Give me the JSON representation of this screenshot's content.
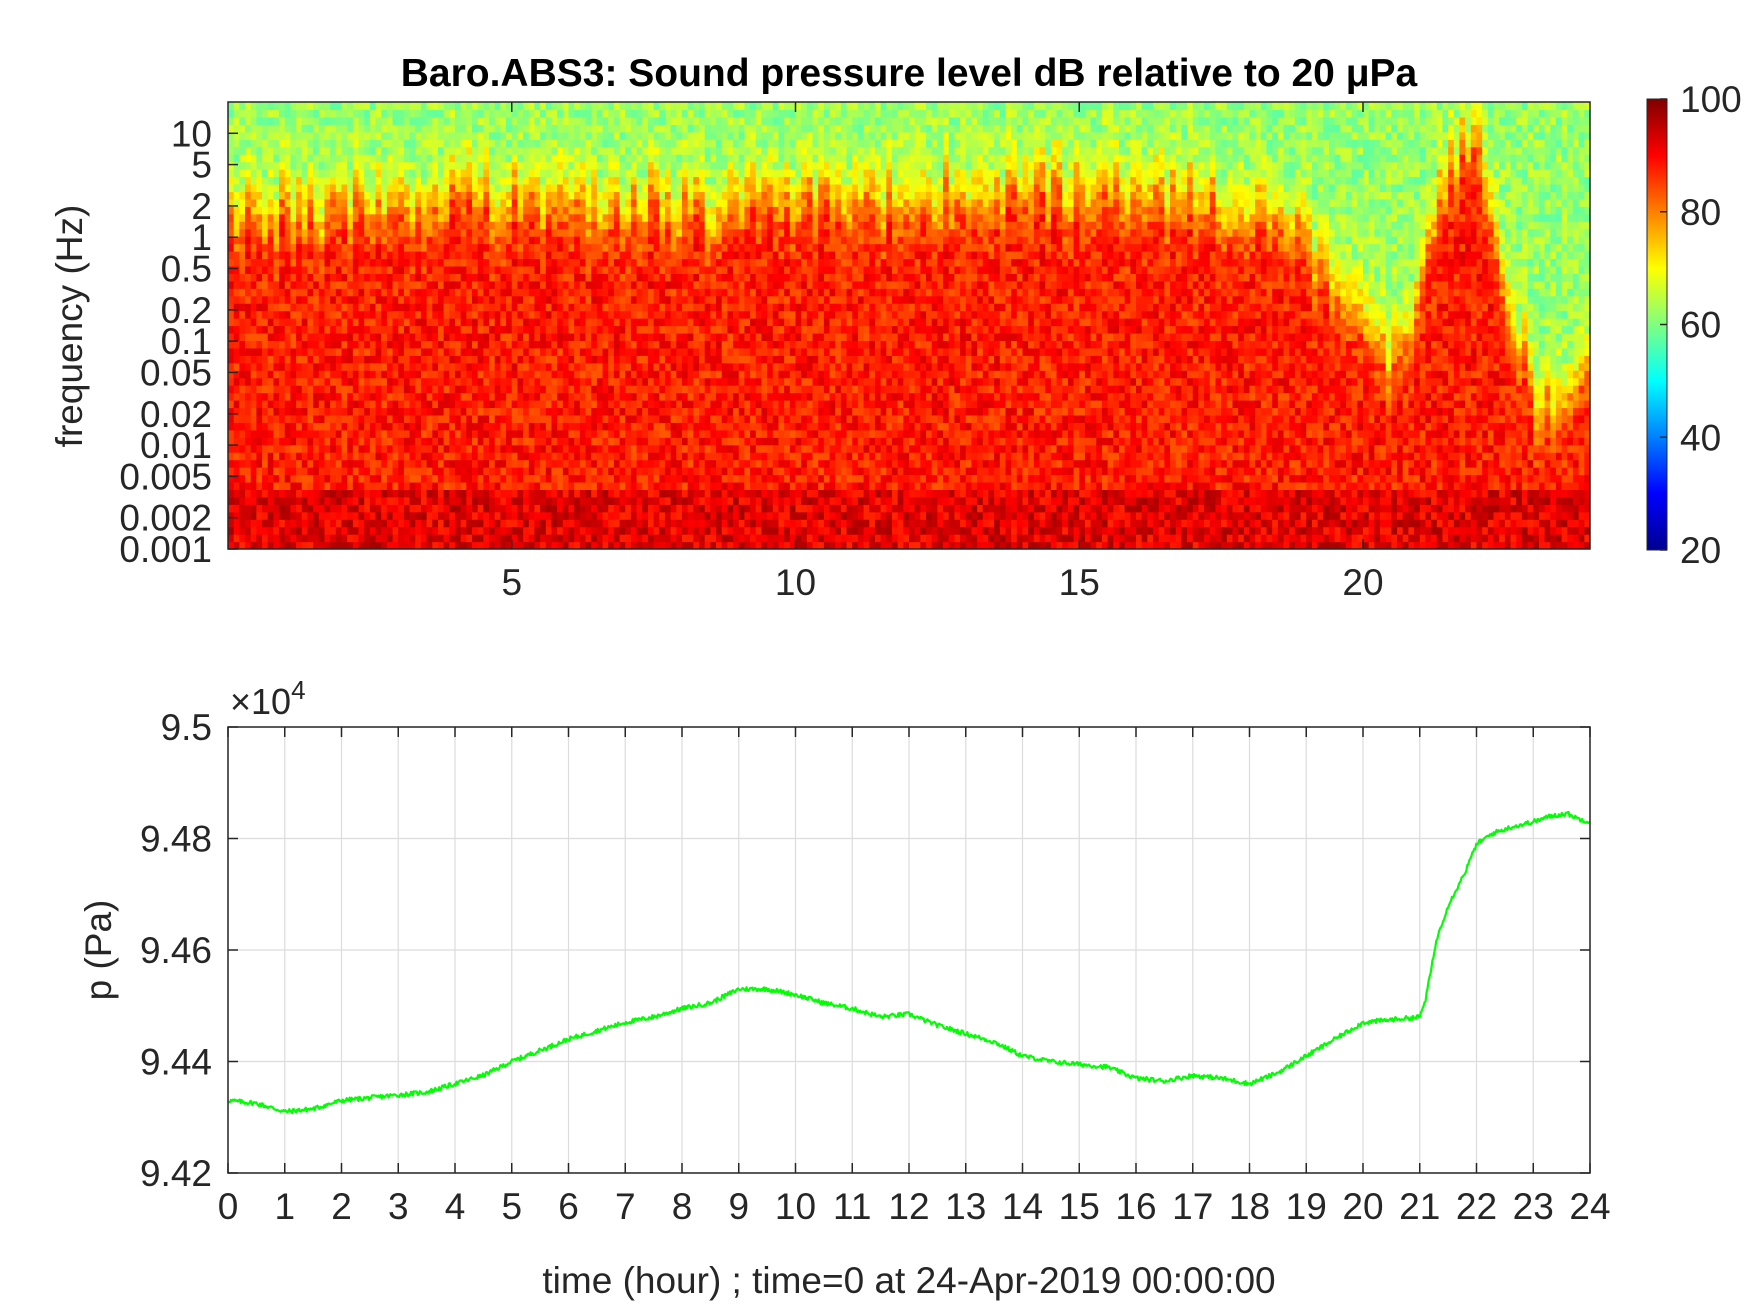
{
  "chart_data": [
    {
      "type": "heatmap",
      "title": "Baro.ABS3: Sound pressure level dB relative to 20 μPa",
      "xlabel": "",
      "ylabel": "frequency (Hz)",
      "x_ticks": [
        "5",
        "10",
        "15",
        "20"
      ],
      "x_tick_values": [
        5,
        10,
        15,
        20
      ],
      "xlim": [
        0,
        24
      ],
      "y_scale": "log",
      "ylim": [
        0.001,
        20
      ],
      "y_ticks": [
        "10",
        "5",
        "2",
        "1",
        "0.5",
        "0.2",
        "0.1",
        "0.05",
        "0.02",
        "0.01",
        "0.005",
        "0.002",
        "0.001"
      ],
      "y_tick_values": [
        10,
        5,
        2,
        1,
        0.5,
        0.2,
        0.1,
        0.05,
        0.02,
        0.01,
        0.005,
        0.002,
        0.001
      ],
      "colorbar": {
        "colormap": "jet",
        "range": [
          20,
          100
        ],
        "ticks": [
          "100",
          "80",
          "60",
          "40",
          "20"
        ],
        "tick_values": [
          100,
          80,
          60,
          40,
          20
        ]
      },
      "description_profile": {
        "x_hours": [
          0,
          2,
          4,
          6,
          8,
          10,
          12,
          14,
          16,
          18,
          19,
          20,
          20.5,
          21,
          21.5,
          22,
          22.5,
          23,
          23.5,
          24
        ],
        "cutoff_freq_hz": [
          2,
          2,
          2.5,
          2.5,
          2,
          2.5,
          2.5,
          3,
          3,
          2,
          1,
          0.2,
          0.05,
          0.3,
          5,
          12,
          0.5,
          0.03,
          0.02,
          0.1
        ]
      }
    },
    {
      "type": "line",
      "title": "",
      "xlabel": "time (hour) ; time=0 at 24-Apr-2019 00:00:00",
      "ylabel": "p (Pa)",
      "y_exponent_label": "×10",
      "y_exponent": "4",
      "xlim": [
        0,
        24
      ],
      "ylim": [
        94200,
        95000
      ],
      "x_ticks": [
        "0",
        "1",
        "2",
        "3",
        "4",
        "5",
        "6",
        "7",
        "8",
        "9",
        "10",
        "11",
        "12",
        "13",
        "14",
        "15",
        "16",
        "17",
        "18",
        "19",
        "20",
        "21",
        "22",
        "23",
        "24"
      ],
      "y_ticks": [
        "9.42",
        "9.44",
        "9.46",
        "9.48",
        "9.5"
      ],
      "y_tick_values": [
        94200,
        94400,
        94600,
        94800,
        95000
      ],
      "grid": true,
      "line_color": "#00ff00",
      "series": [
        {
          "x": [
            0,
            0.5,
            1,
            1.5,
            2,
            2.5,
            3,
            3.5,
            4,
            4.5,
            5,
            5.5,
            6,
            6.5,
            7,
            7.5,
            8,
            8.5,
            9,
            9.5,
            10,
            10.5,
            11,
            11.5,
            12,
            12.5,
            13,
            13.5,
            14,
            14.5,
            15,
            15.5,
            16,
            16.5,
            17,
            17.5,
            18,
            18.5,
            19,
            19.5,
            20,
            20.5,
            21,
            21.1,
            21.3,
            21.5,
            21.8,
            22,
            22.3,
            22.6,
            23,
            23.3,
            23.6,
            23.8,
            24
          ],
          "values": [
            94330,
            94325,
            94310,
            94315,
            94330,
            94335,
            94340,
            94345,
            94360,
            94375,
            94400,
            94420,
            94440,
            94455,
            94470,
            94480,
            94495,
            94505,
            94530,
            94530,
            94520,
            94505,
            94495,
            94480,
            94485,
            94465,
            94450,
            94435,
            94410,
            94400,
            94395,
            94390,
            94370,
            94365,
            94375,
            94370,
            94360,
            94380,
            94410,
            94440,
            94470,
            94475,
            94480,
            94510,
            94620,
            94680,
            94740,
            94790,
            94810,
            94820,
            94830,
            94840,
            94845,
            94835,
            94830
          ]
        }
      ]
    }
  ]
}
